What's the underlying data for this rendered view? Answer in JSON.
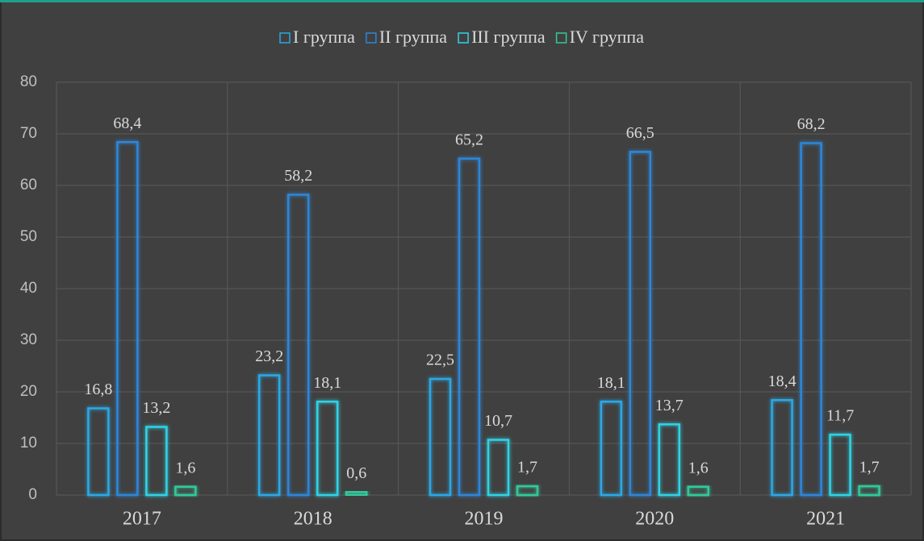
{
  "chart_data": {
    "type": "bar",
    "categories": [
      "2017",
      "2018",
      "2019",
      "2020",
      "2021"
    ],
    "series": [
      {
        "name": "I группа",
        "color": "#29a9e6",
        "values": [
          16.8,
          23.2,
          22.5,
          18.1,
          18.4
        ],
        "value_labels": [
          "16,8",
          "23,2",
          "22,5",
          "18,1",
          "18,4"
        ]
      },
      {
        "name": "II группа",
        "color": "#2d86d8",
        "values": [
          68.4,
          58.2,
          65.2,
          66.5,
          68.2
        ],
        "value_labels": [
          "68,4",
          "58,2",
          "65,2",
          "66,5",
          "68,2"
        ]
      },
      {
        "name": "III группа",
        "color": "#2fd3e6",
        "values": [
          13.2,
          18.1,
          10.7,
          13.7,
          11.7
        ],
        "value_labels": [
          "13,2",
          "18,1",
          "10,7",
          "13,7",
          "11,7"
        ]
      },
      {
        "name": "IV группа",
        "color": "#33c99a",
        "values": [
          1.6,
          0.6,
          1.7,
          1.6,
          1.7
        ],
        "value_labels": [
          "1,6",
          "0,6",
          "1,7",
          "1,6",
          "1,7"
        ]
      }
    ],
    "ylim": [
      0,
      80
    ],
    "yticks": [
      0,
      10,
      20,
      30,
      40,
      50,
      60,
      70,
      80
    ],
    "grid": true,
    "legend": "top"
  }
}
